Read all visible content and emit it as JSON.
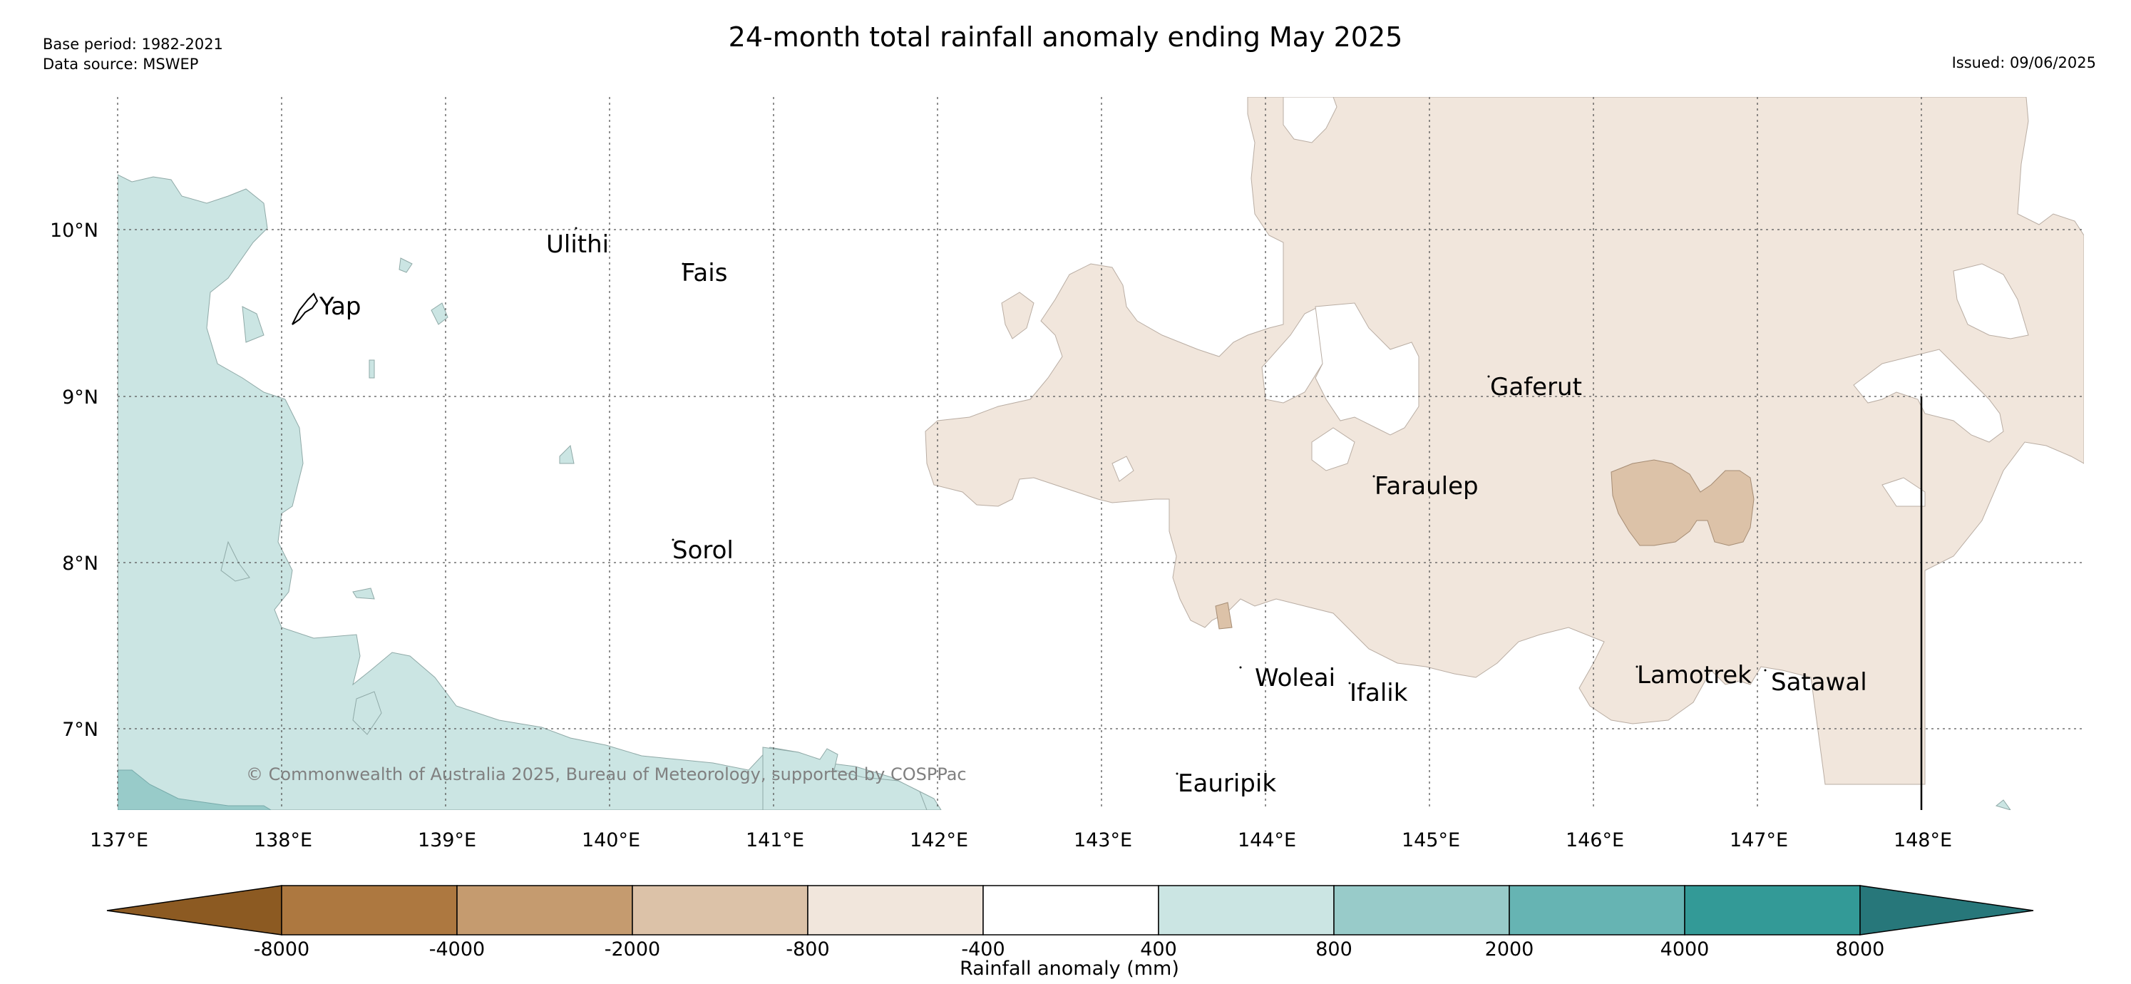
{
  "header": {
    "title": "24-month total rainfall anomaly ending May 2025",
    "base_period": "Base period: 1982-2021",
    "data_source": "Data source: MSWEP",
    "issued": "Issued: 09/06/2025"
  },
  "map": {
    "lon_ticks": [
      "137°E",
      "138°E",
      "139°E",
      "140°E",
      "141°E",
      "142°E",
      "143°E",
      "144°E",
      "145°E",
      "146°E",
      "147°E",
      "148°E"
    ],
    "lat_ticks": [
      "10°N",
      "9°N",
      "8°N",
      "7°N"
    ],
    "locations": [
      {
        "name": "Ulithi"
      },
      {
        "name": "Fais"
      },
      {
        "name": "Yap"
      },
      {
        "name": "Gaferut"
      },
      {
        "name": "Faraulep"
      },
      {
        "name": "Sorol"
      },
      {
        "name": "Woleai"
      },
      {
        "name": "Ifalik"
      },
      {
        "name": "Lamotrek"
      },
      {
        "name": "Satawal"
      },
      {
        "name": "Eauripik"
      }
    ],
    "copyright": "© Commonwealth of Australia 2025, Bureau of Meteorology, supported by COSPPac"
  },
  "legend": {
    "title": "Rainfall anomaly (mm)",
    "ticks": [
      "-8000",
      "-4000",
      "-2000",
      "-800",
      "-400",
      "400",
      "800",
      "2000",
      "4000",
      "8000"
    ],
    "colors": [
      "#8c5a22",
      "#ad7840",
      "#c59b6f",
      "#dcc2a8",
      "#f1e6dc",
      "#ffffff",
      "#cbe5e3",
      "#98cbc9",
      "#66b4b3",
      "#339a97",
      "#27777a"
    ]
  }
}
